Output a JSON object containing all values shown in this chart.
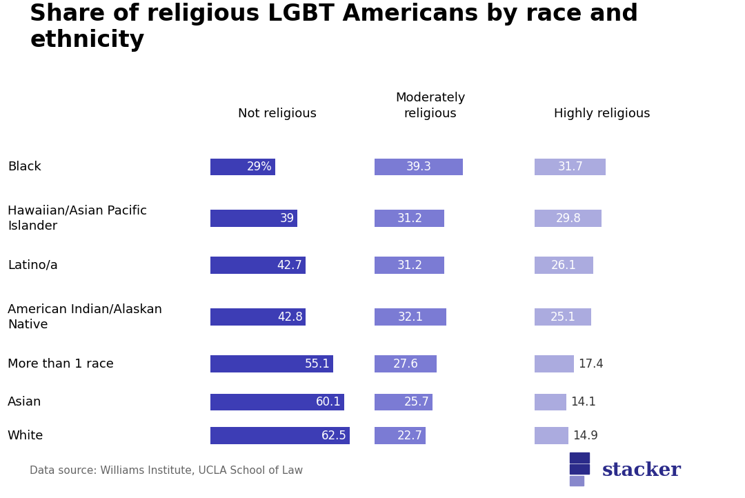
{
  "title": "Share of religious LGBT Americans by race and\nethnicity",
  "categories": [
    "Black",
    "Hawaiian/Asian Pacific\nIslander",
    "Latino/a",
    "American Indian/Alaskan\nNative",
    "More than 1 race",
    "Asian",
    "White"
  ],
  "col_headers": [
    "Not religious",
    "Moderately\nreligious",
    "Highly religious"
  ],
  "not_religious": [
    29.0,
    39.0,
    42.7,
    42.8,
    55.1,
    60.1,
    62.5
  ],
  "moderately_religious": [
    39.3,
    31.2,
    31.2,
    32.1,
    27.6,
    25.7,
    22.7
  ],
  "highly_religious": [
    31.7,
    29.8,
    26.1,
    25.1,
    17.4,
    14.1,
    14.9
  ],
  "not_religious_labels": [
    "29%",
    "39",
    "42.7",
    "42.8",
    "55.1",
    "60.1",
    "62.5"
  ],
  "moderately_religious_labels": [
    "39.3",
    "31.2",
    "31.2",
    "32.1",
    "27.6",
    "25.7",
    "22.7"
  ],
  "highly_religious_labels": [
    "31.7",
    "29.8",
    "26.1",
    "25.1",
    "17.4",
    "14.1",
    "14.9"
  ],
  "color_not_religious": "#3d3db5",
  "color_moderately_religious": "#7b7bd4",
  "color_highly_religious": "#ababdf",
  "background_color": "#ffffff",
  "title_fontsize": 24,
  "header_fontsize": 13,
  "cat_fontsize": 13,
  "bar_label_fontsize": 12,
  "data_source": "Data source: Williams Institute, UCLA School of Law",
  "stacker_color": "#2b2b8a",
  "stacker_light": "#8888cc"
}
